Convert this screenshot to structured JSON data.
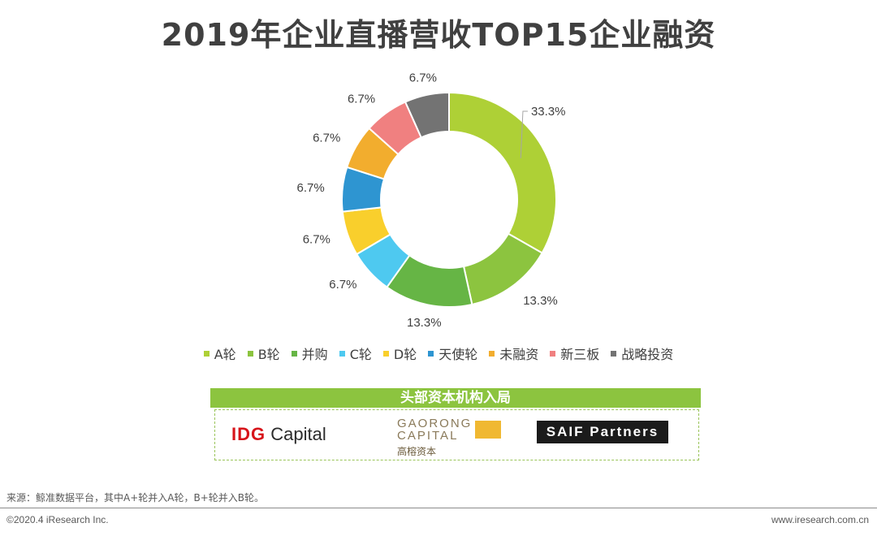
{
  "page": {
    "title": "2019年企业直播营收TOP15企业融资"
  },
  "chart_data": {
    "type": "pie",
    "style": "donut",
    "title": "2019年企业直播营收TOP15企业融资",
    "categories": [
      "A轮",
      "B轮",
      "并购",
      "C轮",
      "D轮",
      "天使轮",
      "未融资",
      "新三板",
      "战略投资"
    ],
    "values": [
      33.3,
      13.3,
      13.3,
      6.7,
      6.7,
      6.7,
      6.7,
      6.7,
      6.7
    ],
    "labels": [
      "33.3%",
      "13.3%",
      "13.3%",
      "6.7%",
      "6.7%",
      "6.7%",
      "6.7%",
      "6.7%",
      "6.7%"
    ],
    "colors": [
      "#aed036",
      "#8cc43f",
      "#66b545",
      "#4ec9f0",
      "#f9cf2c",
      "#2e95d1",
      "#f2ad2e",
      "#f08080",
      "#737373"
    ],
    "legend_position": "bottom"
  },
  "institutions": {
    "header": "头部资本机构入局",
    "idg": {
      "prefix": "IDG",
      "suffix": " Capital"
    },
    "gaorong": {
      "line1": "GAORONG",
      "line2": "CAPITAL",
      "cn": "高榕资本"
    },
    "saif": {
      "text": "SAIF Partners"
    }
  },
  "footer": {
    "source": "来源：鲸准数据平台，其中A+轮并入A轮，B+轮并入B轮。",
    "copyright": "©2020.4 iResearch Inc.",
    "site": "www.iresearch.com.cn"
  }
}
